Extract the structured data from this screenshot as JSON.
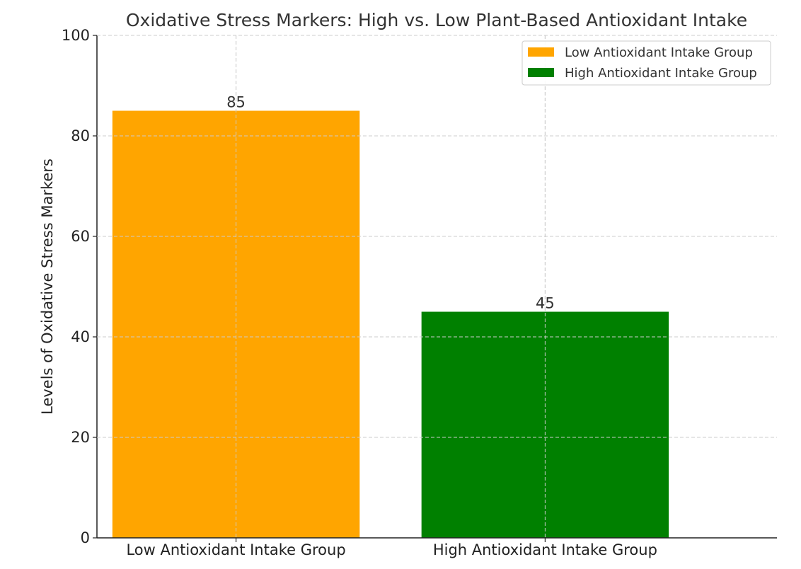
{
  "chart_data": {
    "type": "bar",
    "title": "Oxidative Stress Markers: High vs. Low Plant-Based Antioxidant Intake",
    "xlabel": "",
    "ylabel": "Levels of Oxidative Stress Markers",
    "categories": [
      "Low Antioxidant Intake Group",
      "High Antioxidant Intake Group"
    ],
    "values": [
      85,
      45
    ],
    "data_labels": [
      "85",
      "45"
    ],
    "colors": [
      "#FFA500",
      "#008000"
    ],
    "ylim": [
      0,
      100
    ],
    "yticks": [
      0,
      20,
      40,
      60,
      80,
      100
    ],
    "ytick_labels": [
      "0",
      "20",
      "40",
      "60",
      "80",
      "100"
    ],
    "grid": true,
    "legend": {
      "placement": "top-right",
      "entries": [
        {
          "label": "Low Antioxidant Intake Group",
          "color": "#FFA500"
        },
        {
          "label": "High Antioxidant Intake Group",
          "color": "#008000"
        }
      ]
    }
  }
}
